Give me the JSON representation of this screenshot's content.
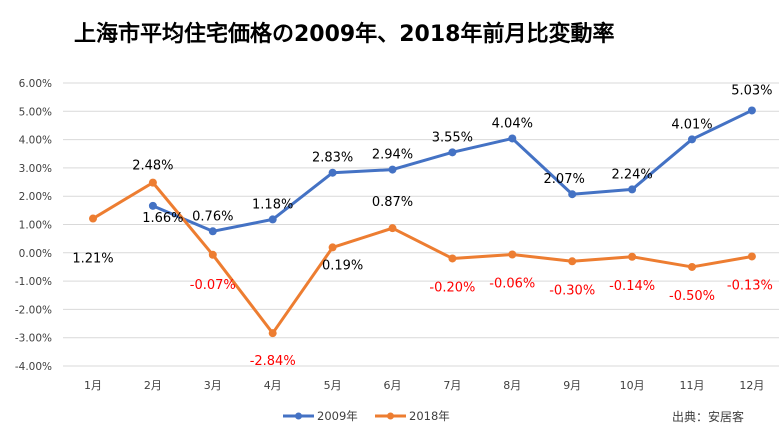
{
  "chart_data": {
    "type": "line",
    "title": "上海市平均住宅価格の2009年、2018年前月比変動率",
    "categories": [
      "1月",
      "2月",
      "3月",
      "4月",
      "5月",
      "6月",
      "7月",
      "8月",
      "9月",
      "10月",
      "11月",
      "12月"
    ],
    "yticks": [
      "6.00%",
      "5.00%",
      "4.00%",
      "3.00%",
      "2.00%",
      "1.00%",
      "0.00%",
      "-1.00%",
      "-2.00%",
      "-3.00%",
      "-4.00%"
    ],
    "ylim": [
      -4,
      6
    ],
    "grid": true,
    "legend_position": "bottom",
    "series": [
      {
        "name": "2009年",
        "color": "#4472C4",
        "values": [
          null,
          1.66,
          0.76,
          1.18,
          2.83,
          2.94,
          3.55,
          4.04,
          2.07,
          2.24,
          4.01,
          5.03
        ],
        "labels": [
          null,
          "1.66%",
          "0.76%",
          "1.18%",
          "2.83%",
          "2.94%",
          "3.55%",
          "4.04%",
          "2.07%",
          "2.24%",
          "4.01%",
          "5.03%"
        ]
      },
      {
        "name": "2018年",
        "color": "#ED7D31",
        "values": [
          1.21,
          2.48,
          -0.07,
          -2.84,
          0.19,
          0.87,
          -0.2,
          -0.06,
          -0.3,
          -0.14,
          -0.5,
          -0.13
        ],
        "labels": [
          "1.21%",
          "2.48%",
          "-0.07%",
          "-2.84%",
          "0.19%",
          "0.87%",
          "-0.20%",
          "-0.06%",
          "-0.30%",
          "-0.14%",
          "-0.50%",
          "-0.13%"
        ]
      }
    ],
    "negative_label_color": "#FF0000",
    "positive_label_color": "#000000",
    "source": "出典：安居客"
  }
}
